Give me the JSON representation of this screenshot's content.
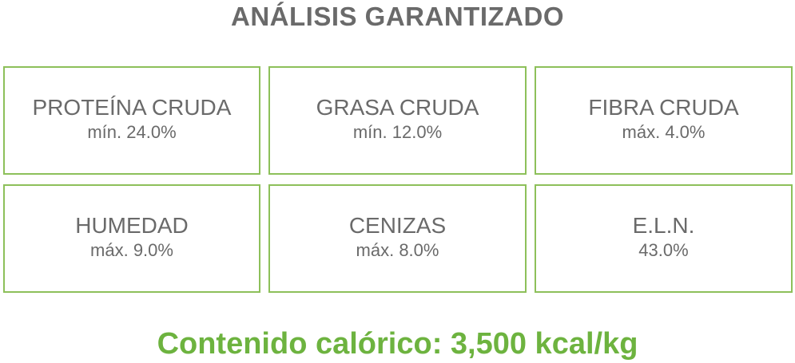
{
  "title": "ANÁLISIS GARANTIZADO",
  "items": [
    {
      "label": "PROTEÍNA CRUDA",
      "value": "mín. 24.0%"
    },
    {
      "label": "GRASA CRUDA",
      "value": "mín. 12.0%"
    },
    {
      "label": "FIBRA CRUDA",
      "value": "máx. 4.0%"
    },
    {
      "label": "HUMEDAD",
      "value": "máx. 9.0%"
    },
    {
      "label": "CENIZAS",
      "value": "máx. 8.0%"
    },
    {
      "label": "E.L.N.",
      "value": "43.0%"
    }
  ],
  "footer": "Contenido calórico: 3,500 kcal/kg",
  "colors": {
    "text": "#6a6a6a",
    "accent": "#6db33f",
    "border": "#8dc05a"
  }
}
